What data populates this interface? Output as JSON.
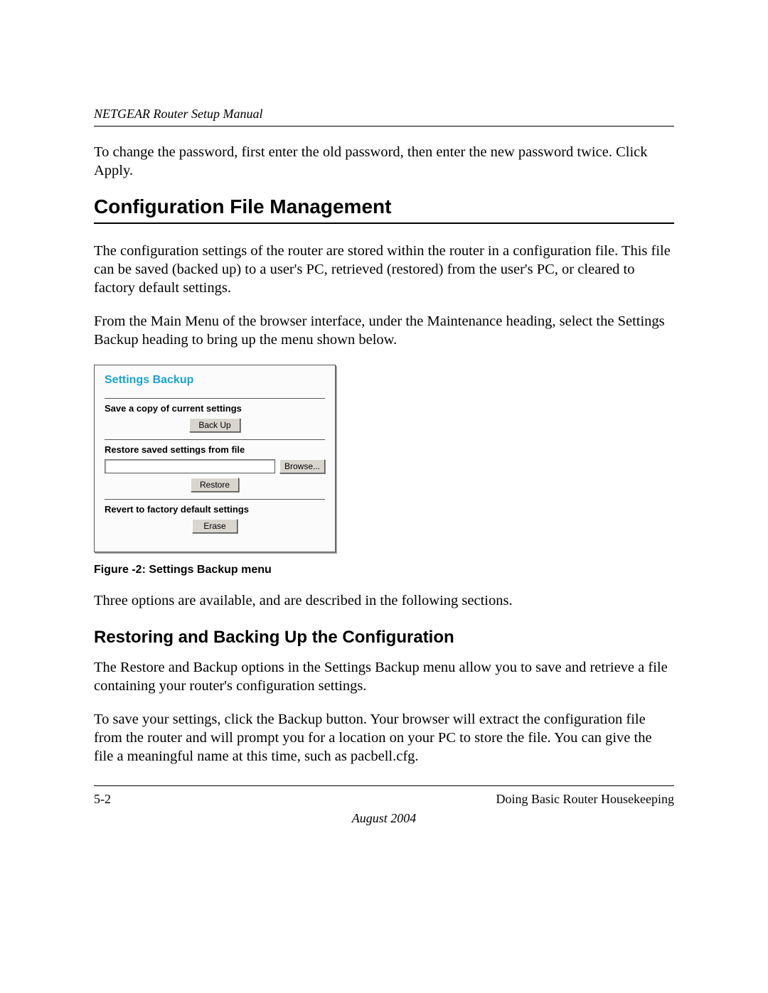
{
  "colors": {
    "text": "#000000",
    "background": "#ffffff",
    "panel_title": "#1aa3cf",
    "panel_bg": "#fbfbfb",
    "button_bg": "#d8d5cf",
    "rule": "#000000"
  },
  "typography": {
    "body_font": "Times New Roman",
    "heading_font": "Arial",
    "body_size_pt": 15,
    "h1_size_pt": 21,
    "h2_size_pt": 18,
    "caption_size_pt": 12
  },
  "header": {
    "running_title": "NETGEAR Router Setup Manual"
  },
  "paragraphs": {
    "intro": "To change the password, first enter the old password, then enter the new password twice. Click Apply.",
    "config_p1": "The configuration settings of the router are stored within the router in a configuration file. This file can be saved (backed up) to a user's PC, retrieved (restored) from the user's PC, or cleared to factory default settings.",
    "config_p2": "From the Main Menu of the browser interface, under the Maintenance heading, select the Settings Backup heading to bring up the menu shown below.",
    "after_fig": "Three options are available, and are described in the following sections.",
    "restore_p1": "The Restore and Backup options in the Settings Backup menu allow you to save and retrieve a file containing your router's configuration settings.",
    "restore_p2": "To save your settings, click the Backup button. Your browser will extract the configuration file from the router and will prompt you for a location on your PC to store the file. You can give the file a meaningful name at this time, such as pacbell.cfg."
  },
  "headings": {
    "h1": "Configuration File Management",
    "h2": "Restoring and Backing Up the Configuration"
  },
  "figure": {
    "caption": "Figure -2:  Settings Backup menu",
    "panel_title": "Settings Backup",
    "save_label": "Save a copy of current settings",
    "backup_btn": "Back Up",
    "restore_label": "Restore saved settings from file",
    "browse_btn": "Browse...",
    "restore_btn": "Restore",
    "revert_label": "Revert to factory default settings",
    "erase_btn": "Erase",
    "file_value": ""
  },
  "footer": {
    "page_num": "5-2",
    "chapter": "Doing Basic Router Housekeeping",
    "date": "August 2004"
  }
}
